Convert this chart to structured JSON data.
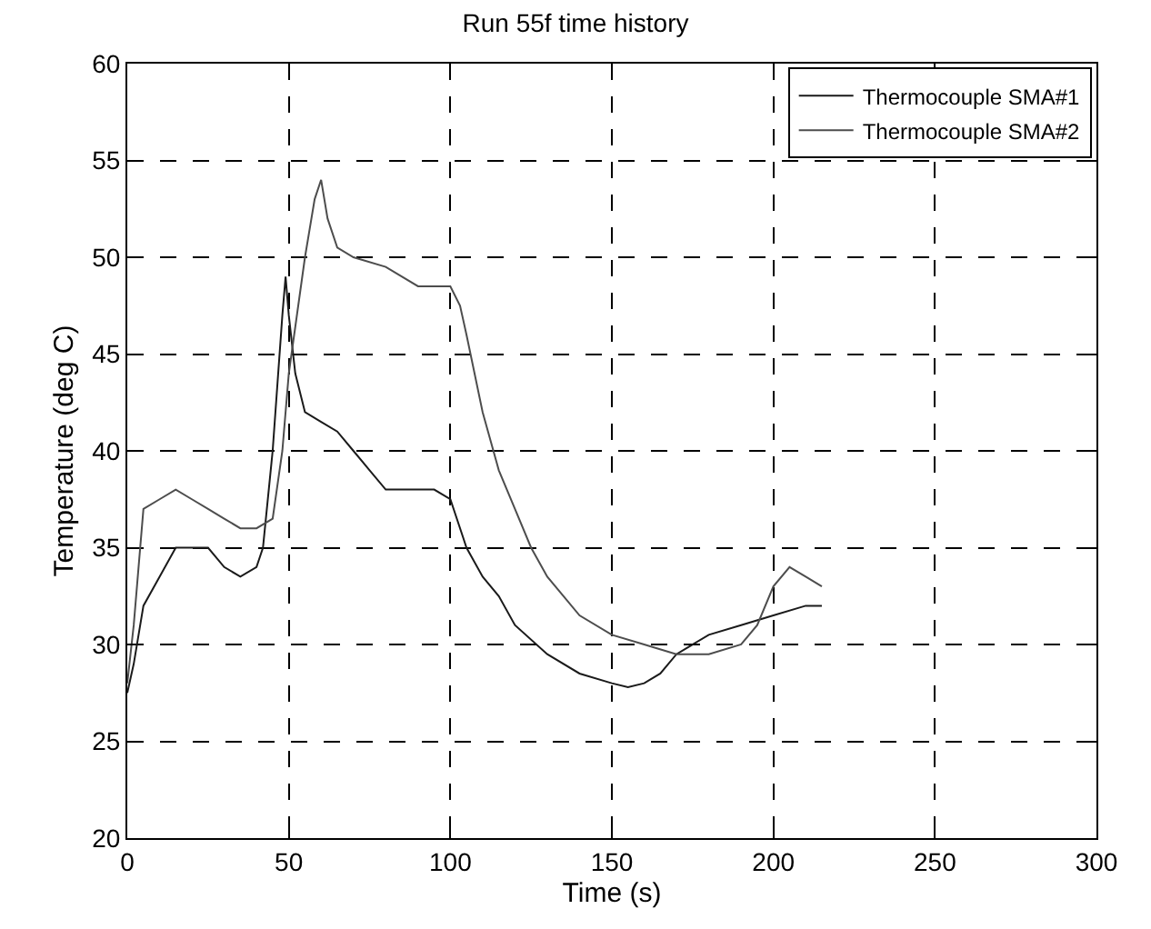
{
  "chart_data": {
    "type": "line",
    "title": "Run 55f time history",
    "xlabel": "Time (s)",
    "ylabel": "Temperature (deg C)",
    "xlim": [
      0,
      300
    ],
    "xticks": [
      0,
      50,
      100,
      150,
      200,
      250,
      300
    ],
    "ylim": [
      20,
      60
    ],
    "yticks": [
      20,
      25,
      30,
      35,
      40,
      45,
      50,
      55,
      60
    ],
    "grid": true,
    "legend": "top right",
    "marker": "none",
    "line_style": "solid",
    "series": [
      {
        "name": "Thermocouple SMA#1",
        "color": "#1a1a1a",
        "x": [
          0,
          2,
          5,
          10,
          15,
          20,
          25,
          30,
          35,
          40,
          42,
          45,
          48,
          49,
          50,
          52,
          55,
          60,
          65,
          70,
          75,
          80,
          85,
          90,
          95,
          100,
          105,
          110,
          115,
          120,
          130,
          140,
          150,
          155,
          160,
          165,
          170,
          180,
          190,
          200,
          210,
          215
        ],
        "values": [
          27.5,
          29,
          32,
          33.5,
          35,
          35,
          35,
          34,
          33.5,
          34,
          35,
          40,
          47,
          49,
          47,
          44,
          42,
          41.5,
          41,
          40,
          39,
          38,
          38,
          38,
          38,
          37.5,
          35,
          33.5,
          32.5,
          31,
          29.5,
          28.5,
          28,
          27.8,
          28,
          28.5,
          29.5,
          30.5,
          31,
          31.5,
          32,
          32
        ]
      },
      {
        "name": "Thermocouple SMA#2",
        "color": "#4d4d4d",
        "x": [
          0,
          2,
          5,
          10,
          15,
          20,
          25,
          30,
          35,
          40,
          45,
          48,
          50,
          55,
          58,
          60,
          62,
          65,
          70,
          80,
          90,
          95,
          100,
          103,
          105,
          110,
          115,
          120,
          125,
          130,
          140,
          150,
          160,
          170,
          180,
          190,
          195,
          200,
          205,
          210,
          215
        ],
        "values": [
          28,
          31,
          37,
          37.5,
          38,
          37.5,
          37,
          36.5,
          36,
          36,
          36.5,
          40,
          44,
          50,
          53,
          54,
          52,
          50.5,
          50,
          49.5,
          48.5,
          48.5,
          48.5,
          47.5,
          46,
          42,
          39,
          37,
          35,
          33.5,
          31.5,
          30.5,
          30,
          29.5,
          29.5,
          30,
          31,
          33,
          34,
          33.5,
          33
        ]
      }
    ]
  }
}
